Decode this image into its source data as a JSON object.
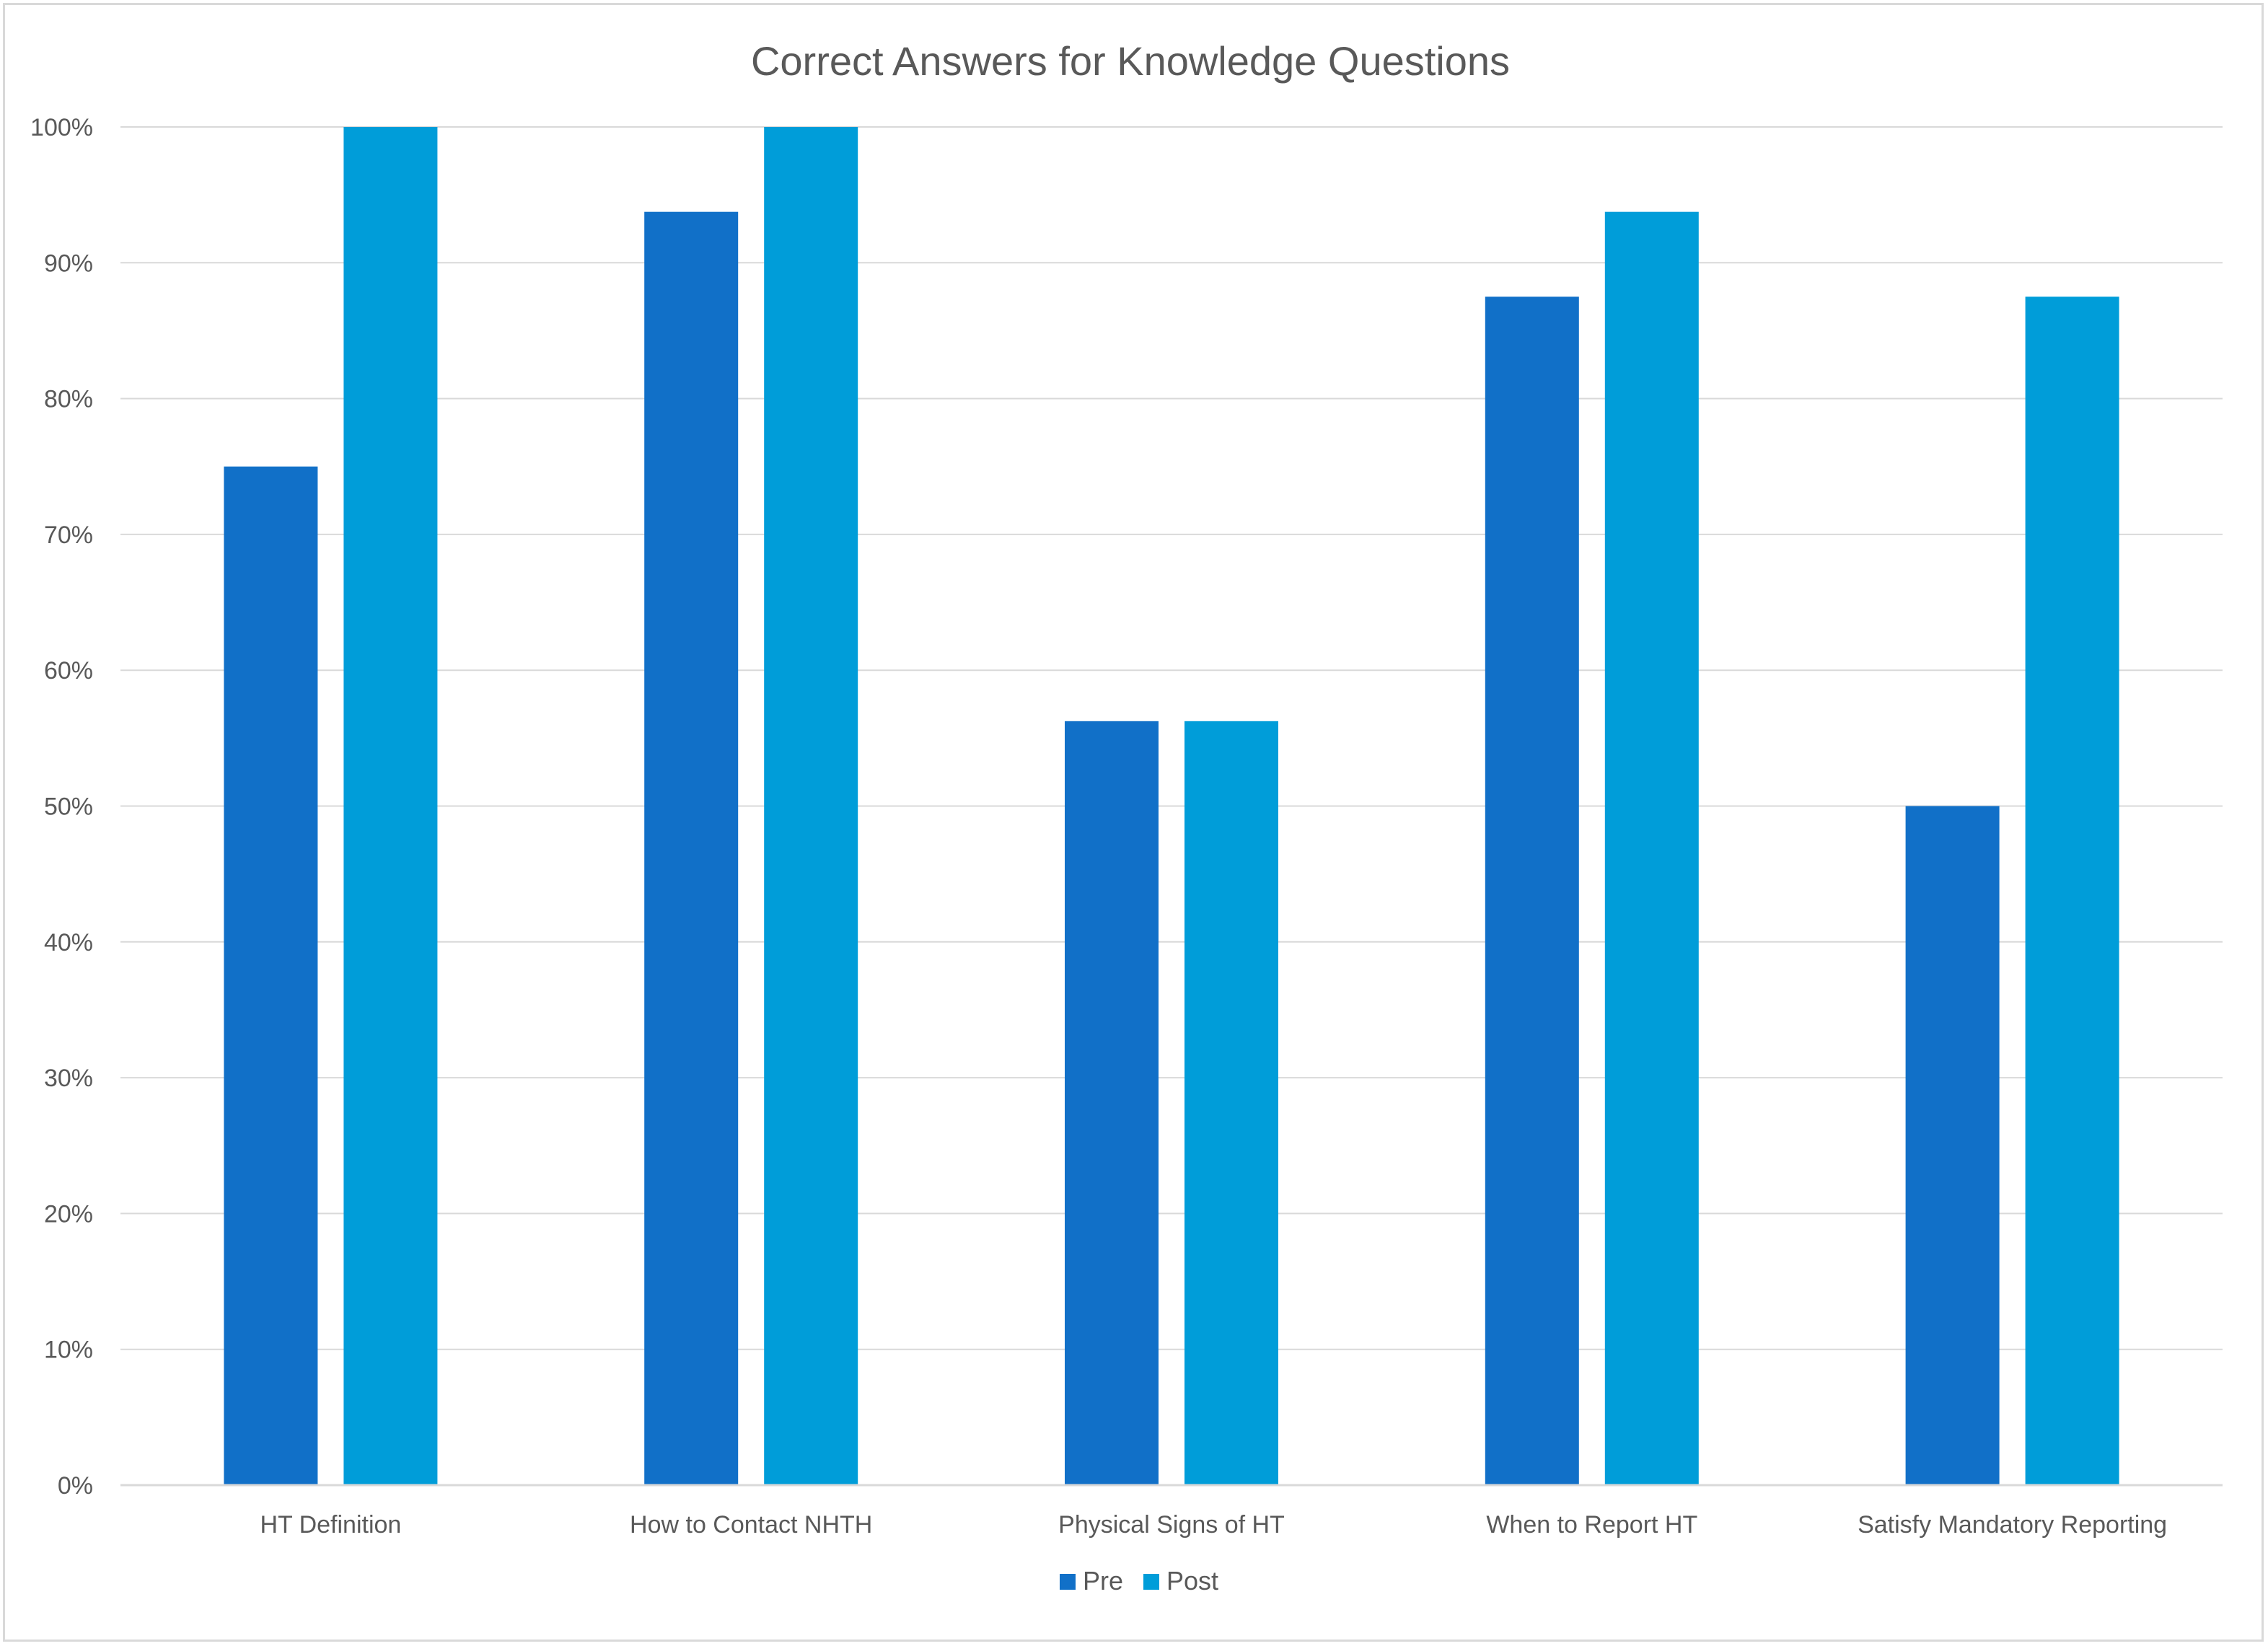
{
  "chart_data": {
    "type": "bar",
    "title": "Correct Answers for Knowledge Questions",
    "xlabel": "",
    "ylabel": "",
    "categories": [
      "HT Definition",
      "How to Contact NHTH",
      "Physical Signs of HT",
      "When to Report HT",
      "Satisfy Mandatory Reporting"
    ],
    "series": [
      {
        "name": "Pre",
        "color": "#1170c8",
        "values": [
          75,
          93.75,
          56.25,
          87.5,
          50
        ]
      },
      {
        "name": "Post",
        "color": "#009dd9",
        "values": [
          100,
          100,
          56.25,
          93.75,
          87.5
        ]
      }
    ],
    "ylim": [
      0,
      100
    ],
    "yticks": [
      0,
      10,
      20,
      30,
      40,
      50,
      60,
      70,
      80,
      90,
      100
    ],
    "ytick_labels": [
      "0%",
      "10%",
      "20%",
      "30%",
      "40%",
      "50%",
      "60%",
      "70%",
      "80%",
      "90%",
      "100%"
    ],
    "grid": true,
    "legend_position": "bottom"
  }
}
